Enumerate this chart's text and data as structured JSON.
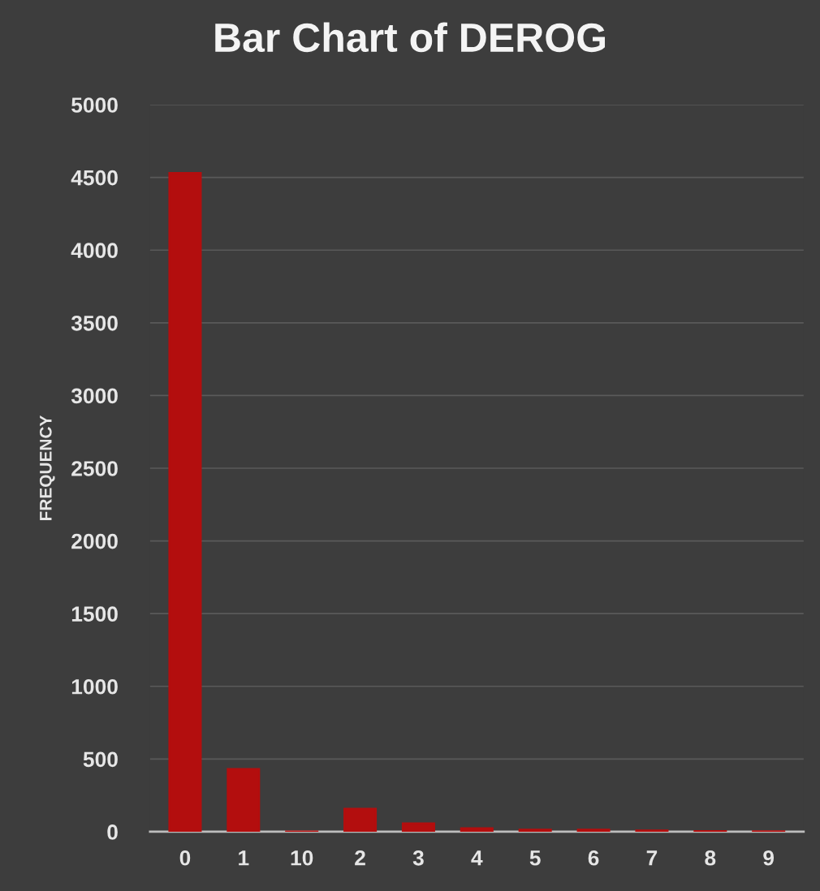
{
  "chart_data": {
    "type": "bar",
    "title": "Bar Chart of DEROG",
    "ylabel": "FREQUENCY",
    "categories": [
      "0",
      "1",
      "10",
      "2",
      "3",
      "4",
      "5",
      "6",
      "7",
      "8",
      "9"
    ],
    "values": [
      4530,
      432,
      2,
      159,
      58,
      25,
      15,
      15,
      9,
      5,
      4
    ],
    "color": "#b30e0e",
    "ylim": [
      0,
      5000
    ],
    "yticks": [
      0,
      500,
      1000,
      1500,
      2000,
      2500,
      3000,
      3500,
      4000,
      4500,
      5000
    ],
    "grid": "y",
    "legend": false
  }
}
